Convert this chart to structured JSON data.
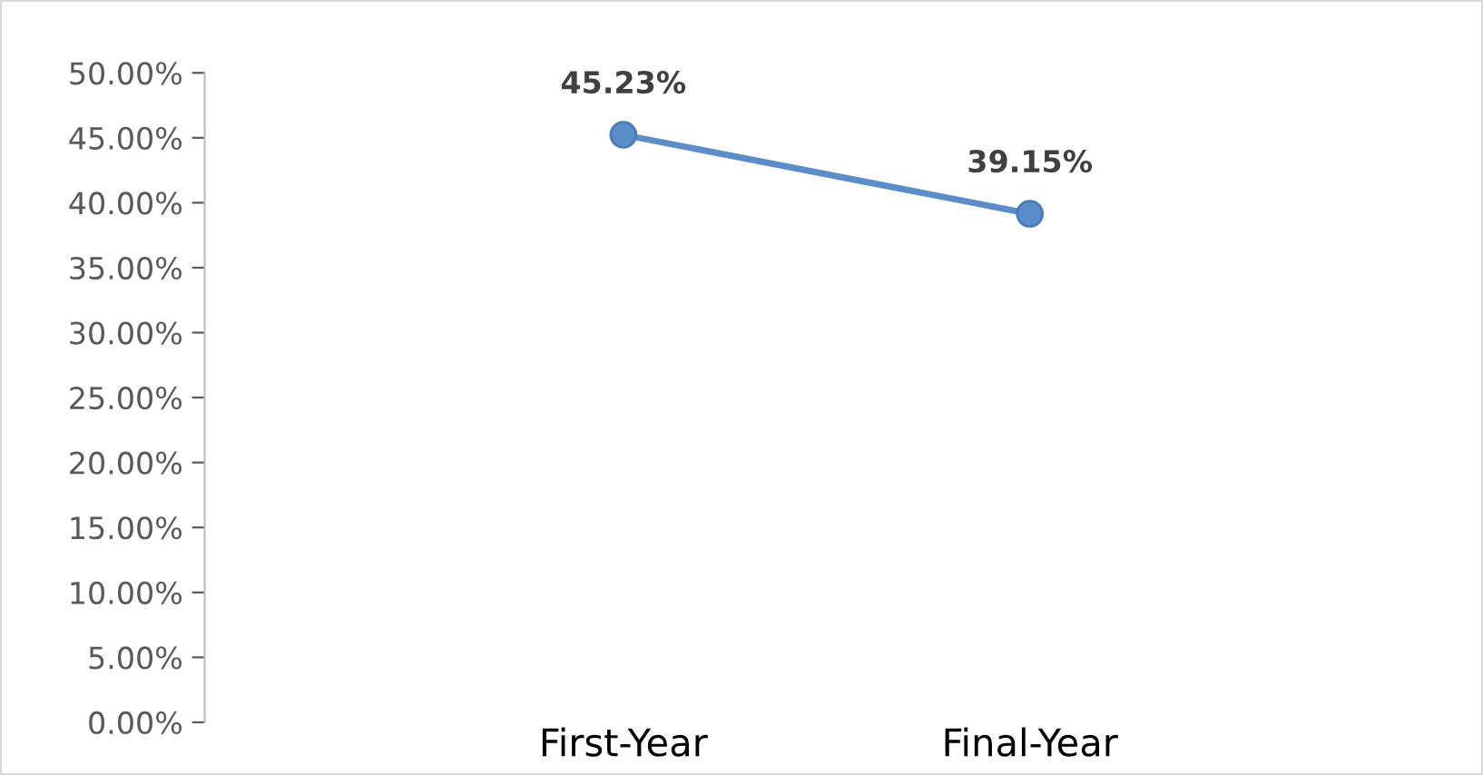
{
  "chart_data": {
    "type": "line",
    "categories": [
      "First-Year",
      "Final-Year"
    ],
    "series": [
      {
        "color": "#5b8dc8",
        "values": [
          45.23,
          39.15
        ],
        "value_labels": [
          "45.23%",
          "39.15%"
        ]
      }
    ],
    "ylim": [
      0,
      50
    ],
    "yticks": [
      {
        "value": 0,
        "label": "0.00%"
      },
      {
        "value": 5,
        "label": "5.00%"
      },
      {
        "value": 10,
        "label": "10.00%"
      },
      {
        "value": 15,
        "label": "15.00%"
      },
      {
        "value": 20,
        "label": "20.00%"
      },
      {
        "value": 25,
        "label": "25.00%"
      },
      {
        "value": 30,
        "label": "30.00%"
      },
      {
        "value": 35,
        "label": "35.00%"
      },
      {
        "value": 40,
        "label": "40.00%"
      },
      {
        "value": 45,
        "label": "45.00%"
      },
      {
        "value": 50,
        "label": "50.00%"
      }
    ],
    "marker": "circle",
    "line_style": "solid",
    "grid": false,
    "legend": false
  }
}
